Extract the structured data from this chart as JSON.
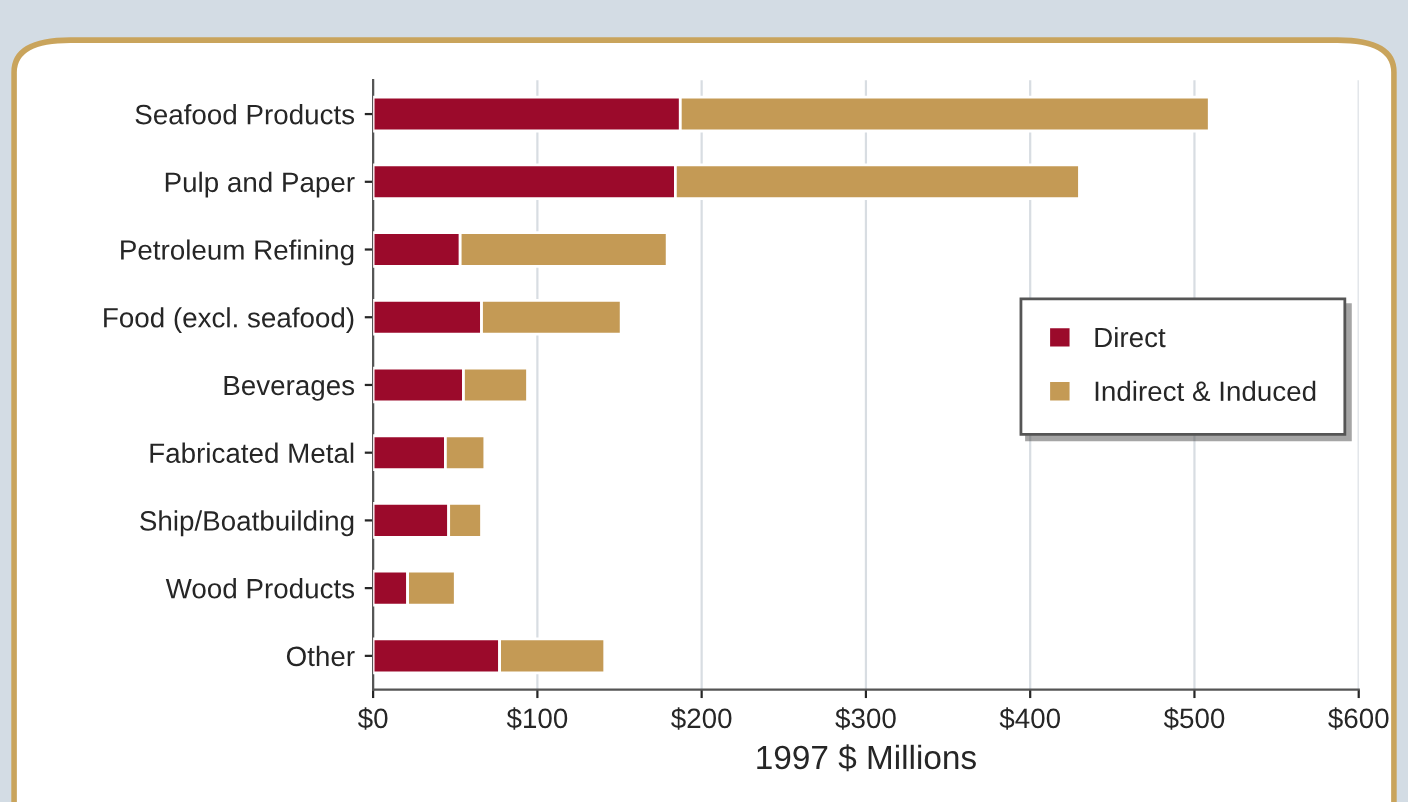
{
  "chart_data": {
    "type": "bar",
    "orientation": "horizontal",
    "stacked": true,
    "xlabel": "1997 $ Millions",
    "categories": [
      "Seafood Products",
      "Pulp and Paper",
      "Petroleum Refining",
      "Food (excl. seafood)",
      "Beverages",
      "Fabricated Metal",
      "Ship/Boatbuilding",
      "Wood Products",
      "Other"
    ],
    "series": [
      {
        "name": "Direct",
        "color": "#9b0a2b",
        "values": [
          187,
          184,
          53,
          66,
          55,
          44,
          46,
          21,
          77
        ]
      },
      {
        "name": "Indirect & Induced",
        "color": "#c49a55",
        "values": [
          322,
          246,
          126,
          85,
          39,
          24,
          20,
          29,
          64
        ]
      }
    ],
    "xlim": [
      0,
      600
    ],
    "xticks": [
      {
        "value": 0,
        "label": "$0"
      },
      {
        "value": 100,
        "label": "$100"
      },
      {
        "value": 200,
        "label": "$200"
      },
      {
        "value": 300,
        "label": "$300"
      },
      {
        "value": 400,
        "label": "$400"
      },
      {
        "value": 500,
        "label": "$500"
      },
      {
        "value": 600,
        "label": "$600"
      }
    ],
    "grid": "x",
    "legend": "right"
  }
}
